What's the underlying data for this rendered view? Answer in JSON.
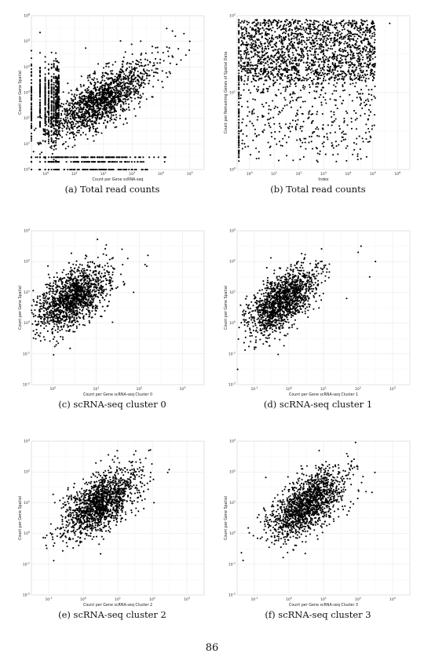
{
  "page_number": "86",
  "chart_data": [
    {
      "id": "a",
      "type": "scatter",
      "caption": "(a) Total read counts",
      "xlabel": "Count per Gene scRNA-seq",
      "ylabel": "Count per Gene Spatial",
      "log_x": true,
      "log_y": true,
      "xlim": [
        0,
        6
      ],
      "ylim": [
        0,
        6
      ],
      "x_ticks": [
        "10^0",
        "10^1",
        "10^2",
        "10^3",
        "10^4",
        "10^5"
      ],
      "y_ticks": [
        "10^0",
        "10^1",
        "10^2",
        "10^3",
        "10^4",
        "10^5",
        "10^6"
      ],
      "grid": true,
      "point_cloud": {
        "count": 2600,
        "center_x": 2.4,
        "center_y": 2.7,
        "spread_x": 0.9,
        "spread_y": 0.75,
        "correlation": 0.75,
        "stripes_x": [
          0,
          0.3,
          0.48,
          0.6,
          0.7,
          0.78,
          0.85,
          0.9,
          0.95
        ],
        "stripes_y": [
          0,
          0.3,
          0.48
        ]
      },
      "highlights": [
        [
          5.3,
          5.3
        ],
        [
          5.5,
          5.0
        ],
        [
          4.7,
          5.5
        ],
        [
          4.9,
          5.4
        ],
        [
          4.2,
          4.8
        ],
        [
          5.0,
          5.2
        ]
      ]
    },
    {
      "id": "b",
      "type": "scatter",
      "caption": "(b) Total read counts",
      "xlabel": "Index",
      "ylabel": "Count per Remaining Genes of Spatial Data",
      "log_x": true,
      "log_y": true,
      "xlim": [
        0,
        3
      ],
      "ylim": [
        0,
        2
      ],
      "x_ticks": [
        "10^0",
        "10^1",
        "10^2",
        "10^3",
        "10^4",
        "10^5",
        "10^6"
      ],
      "y_ticks": [
        "10^0",
        "10^1",
        "10^2"
      ],
      "grid": true,
      "point_cloud": {
        "count": 2200,
        "dense_band": [
          1.0,
          2.0
        ],
        "sparse_below": true
      },
      "highlights": [
        [
          5.3,
          1.9
        ],
        [
          4.7,
          1.5
        ],
        [
          2.8,
          0.1
        ],
        [
          3.5,
          0.2
        ],
        [
          3.0,
          0.3
        ]
      ]
    },
    {
      "id": "c",
      "type": "scatter",
      "caption": "(c) scRNA-seq cluster 0",
      "xlabel": "Count per Gene scRNA-seq Cluster 0",
      "ylabel": "Count per Gene Spatial",
      "log_x": true,
      "log_y": true,
      "xlim": [
        -0.6,
        3.2
      ],
      "ylim": [
        -2,
        3
      ],
      "x_ticks": [
        "10^0",
        "10^1",
        "10^2",
        "10^3"
      ],
      "y_ticks": [
        "10^-2",
        "10^-1",
        "10^0",
        "10^1",
        "10^2",
        "10^3"
      ],
      "grid": true,
      "point_cloud": {
        "count": 1500,
        "center_x": 0.3,
        "center_y": 0.8,
        "spread_x": 0.4,
        "spread_y": 0.55,
        "correlation": 0.55
      },
      "highlights": [
        [
          3.0,
          1.9
        ],
        [
          3.1,
          2.2
        ],
        [
          2.4,
          2.1
        ],
        [
          2.2,
          2.4
        ],
        [
          2.6,
          1.0
        ]
      ]
    },
    {
      "id": "d",
      "type": "scatter",
      "caption": "(d) scRNA-seq cluster 1",
      "xlabel": "Count per Gene scRNA-seq Cluster 1",
      "ylabel": "Count per Gene Spatial",
      "log_x": true,
      "log_y": true,
      "xlim": [
        -1,
        3.6
      ],
      "ylim": [
        -2,
        3
      ],
      "x_ticks": [
        "10^-1",
        "10^0",
        "10^1",
        "10^2",
        "10^3"
      ],
      "y_ticks": [
        "10^-2",
        "10^-1",
        "10^0",
        "10^1",
        "10^2",
        "10^3"
      ],
      "grid": true,
      "point_cloud": {
        "count": 1500,
        "center_x": 0.2,
        "center_y": 0.7,
        "spread_x": 0.45,
        "spread_y": 0.55,
        "correlation": 0.6
      },
      "highlights": [
        [
          3.5,
          2.0
        ],
        [
          3.3,
          1.5
        ],
        [
          3.0,
          2.5
        ],
        [
          2.5,
          0.8
        ],
        [
          2.9,
          2.3
        ]
      ]
    },
    {
      "id": "e",
      "type": "scatter",
      "caption": "(e) scRNA-seq cluster 2",
      "xlabel": "Count per Gene scRNA-seq Cluster 2",
      "ylabel": "Count per Gene Spatial",
      "log_x": true,
      "log_y": true,
      "xlim": [
        -1.6,
        2.6
      ],
      "ylim": [
        -2.4,
        3
      ],
      "x_ticks": [
        "10^-1",
        "10^0",
        "10^1",
        "10^2",
        "10^3"
      ],
      "y_ticks": [
        "10^-2",
        "10^-1",
        "10^0",
        "10^1",
        "10^2",
        "10^3"
      ],
      "grid": true,
      "point_cloud": {
        "count": 1500,
        "center_x": 0.05,
        "center_y": 0.8,
        "spread_x": 0.45,
        "spread_y": 0.6,
        "correlation": 0.6
      },
      "highlights": [
        [
          2.45,
          1.9
        ],
        [
          2.5,
          2.0
        ],
        [
          1.6,
          2.1
        ],
        [
          1.2,
          0.5
        ],
        [
          1.9,
          2.2
        ]
      ]
    },
    {
      "id": "f",
      "type": "scatter",
      "caption": "(f) scRNA-seq cluster 3",
      "xlabel": "Count per Gene scRNA-seq Cluster 3",
      "ylabel": "Count per Gene Spatial",
      "log_x": true,
      "log_y": true,
      "xlim": [
        -1.6,
        2.6
      ],
      "ylim": [
        -2.4,
        3
      ],
      "x_ticks": [
        "10^-1",
        "10^0",
        "10^1",
        "10^2",
        "10^3"
      ],
      "y_ticks": [
        "10^-2",
        "10^-1",
        "10^0",
        "10^1",
        "10^2",
        "10^3"
      ],
      "grid": true,
      "point_cloud": {
        "count": 1500,
        "center_x": 0.1,
        "center_y": 0.8,
        "spread_x": 0.45,
        "spread_y": 0.6,
        "correlation": 0.6
      },
      "highlights": [
        [
          2.5,
          1.9
        ],
        [
          2.4,
          1.2
        ],
        [
          1.7,
          2.3
        ],
        [
          1.4,
          0.6
        ],
        [
          1.9,
          2.1
        ]
      ]
    }
  ]
}
